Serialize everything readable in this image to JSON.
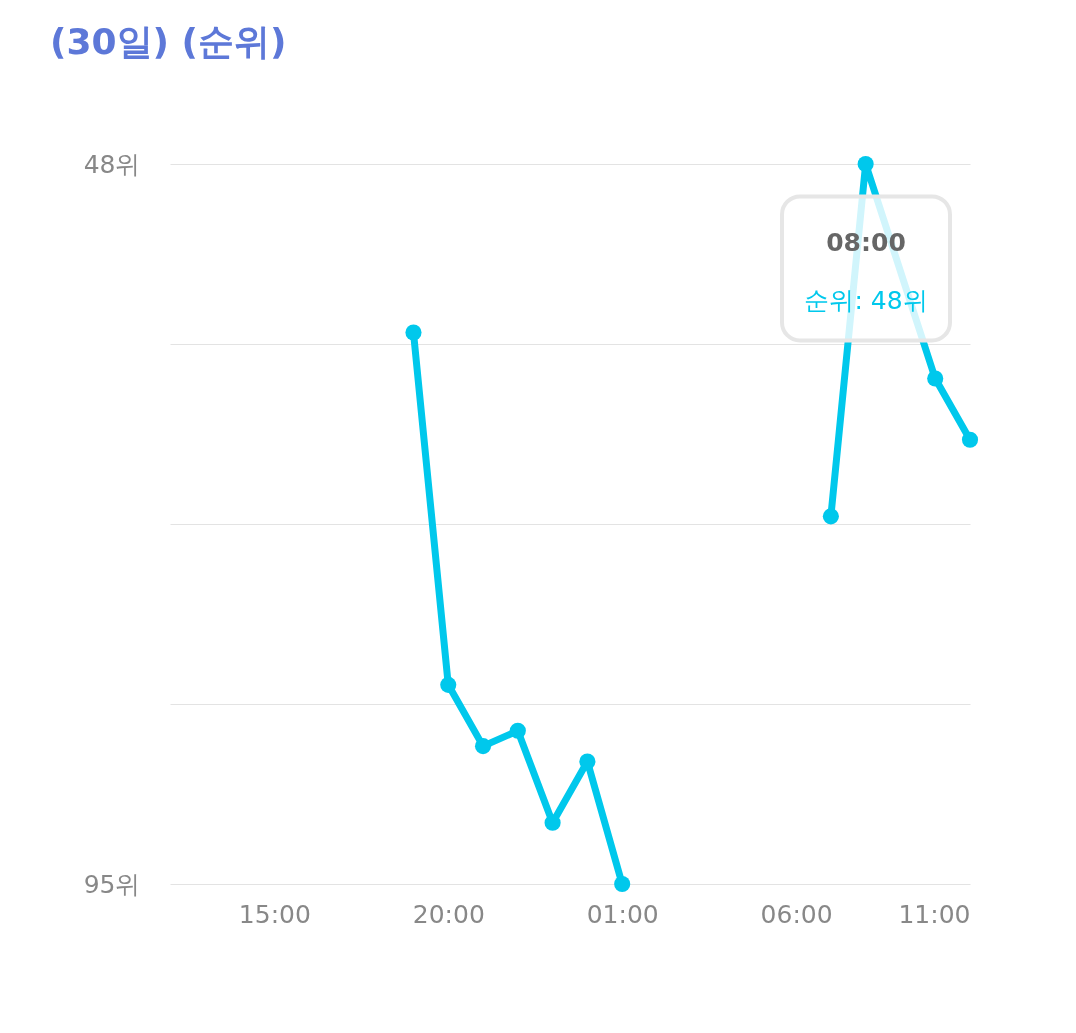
{
  "chart_data": {
    "type": "line",
    "title": "(30일) (순위)",
    "x": [
      "--01-01T19:00",
      "--01-01T20:00",
      "--01-01T21:00",
      "--01-01T22:00",
      "--01-01T23:00",
      "--01-02T00:00",
      "--01-02T01:00",
      "--01-02T06:00",
      "--01-02T07:00",
      "--01-02T08:00",
      "--01-02T10:00",
      "--01-02T11:00"
    ],
    "series": [
      {
        "color": "#00c8ec",
        "values": [
          59,
          82,
          86,
          85,
          91,
          87,
          95,
          null,
          71,
          48,
          62,
          66
        ]
      }
    ],
    "xlim": [
      "--01-01T12:00",
      "--01-02T11:00"
    ],
    "xticks": [
      {
        "value": "--01-01T15:00",
        "label": "15:00"
      },
      {
        "value": "--01-01T20:00",
        "label": "20:00"
      },
      {
        "value": "--01-02T01:00",
        "label": "01:00"
      },
      {
        "value": "--01-02T06:00",
        "label": "06:00"
      },
      {
        "value": "--01-02T11:00",
        "label": "11:00"
      }
    ],
    "ylim": [
      95,
      48
    ],
    "yticks": [
      {
        "value": 48,
        "label": "48위"
      },
      {
        "value": 59.75,
        "label": null
      },
      {
        "value": 71.5,
        "label": null
      },
      {
        "value": 83.25,
        "label": null
      },
      {
        "value": 95,
        "label": "95위"
      }
    ],
    "grid": "y",
    "marker": "circle",
    "line_style": "solid",
    "annotations": [
      "08:00",
      "순위: 48위"
    ]
  }
}
